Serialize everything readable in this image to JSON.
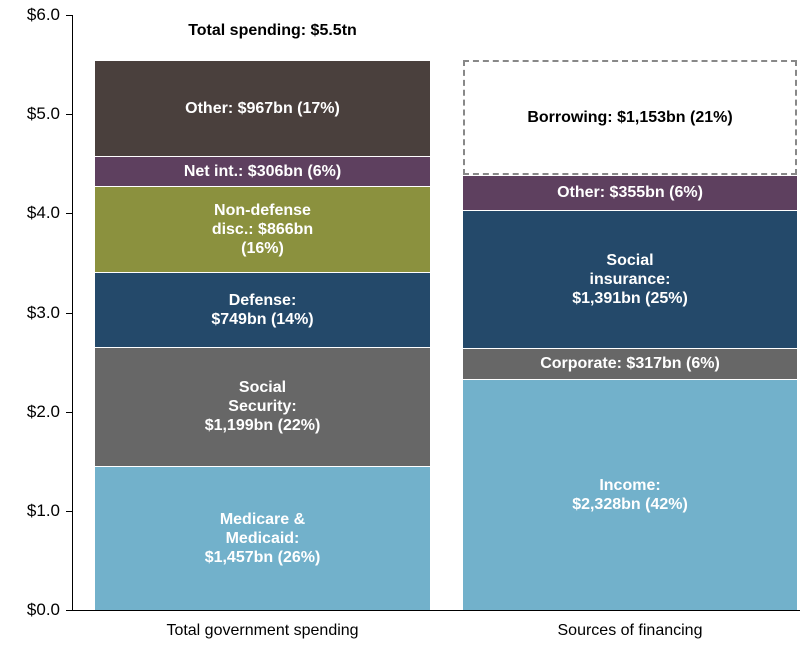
{
  "chart_data": {
    "type": "bar",
    "stacked": true,
    "title": "Total spending: $5.5tn",
    "categories": [
      "Total government spending",
      "Sources of financing"
    ],
    "ylim": [
      0,
      6
    ],
    "yticks": [
      {
        "value": 0,
        "label": "$0.0"
      },
      {
        "value": 1,
        "label": "$1.0"
      },
      {
        "value": 2,
        "label": "$2.0"
      },
      {
        "value": 3,
        "label": "$3.0"
      },
      {
        "value": 4,
        "label": "$4.0"
      },
      {
        "value": 5,
        "label": "$5.0"
      },
      {
        "value": 6,
        "label": "$6.0"
      }
    ],
    "stacks": [
      {
        "values": [
          1.457,
          1.199,
          0.749,
          0.866,
          0.306,
          0.967
        ],
        "value_labels": [
          [
            "Medicare &",
            "Medicaid:",
            "$1,457bn (26%)"
          ],
          [
            "Social",
            "Security:",
            "$1,199bn (22%)"
          ],
          [
            "Defense:",
            "$749bn (14%)"
          ],
          [
            "Non-defense",
            "disc.: $866bn",
            "(16%)"
          ],
          [
            "Net int.: $306bn (6%)"
          ],
          [
            "Other: $967bn (17%)"
          ]
        ],
        "colors": [
          "#72b1cb",
          "#676767",
          "#24496a",
          "#8b913e",
          "#5e405f",
          "#4a403d"
        ],
        "styles": [
          "solid",
          "solid",
          "solid",
          "solid",
          "solid",
          "solid"
        ]
      },
      {
        "values": [
          2.328,
          0.317,
          1.391,
          0.355,
          1.153
        ],
        "value_labels": [
          [
            "Income:",
            "$2,328bn (42%)"
          ],
          [
            "Corporate: $317bn (6%)"
          ],
          [
            "Social",
            "insurance:",
            "$1,391bn (25%)"
          ],
          [
            "Other: $355bn (6%)"
          ],
          [
            "Borrowing: $1,153bn (21%)"
          ]
        ],
        "colors": [
          "#72b1cb",
          "#676767",
          "#24496a",
          "#5e405f",
          "#888888"
        ],
        "styles": [
          "solid",
          "solid",
          "solid",
          "solid",
          "dashed"
        ]
      }
    ]
  }
}
